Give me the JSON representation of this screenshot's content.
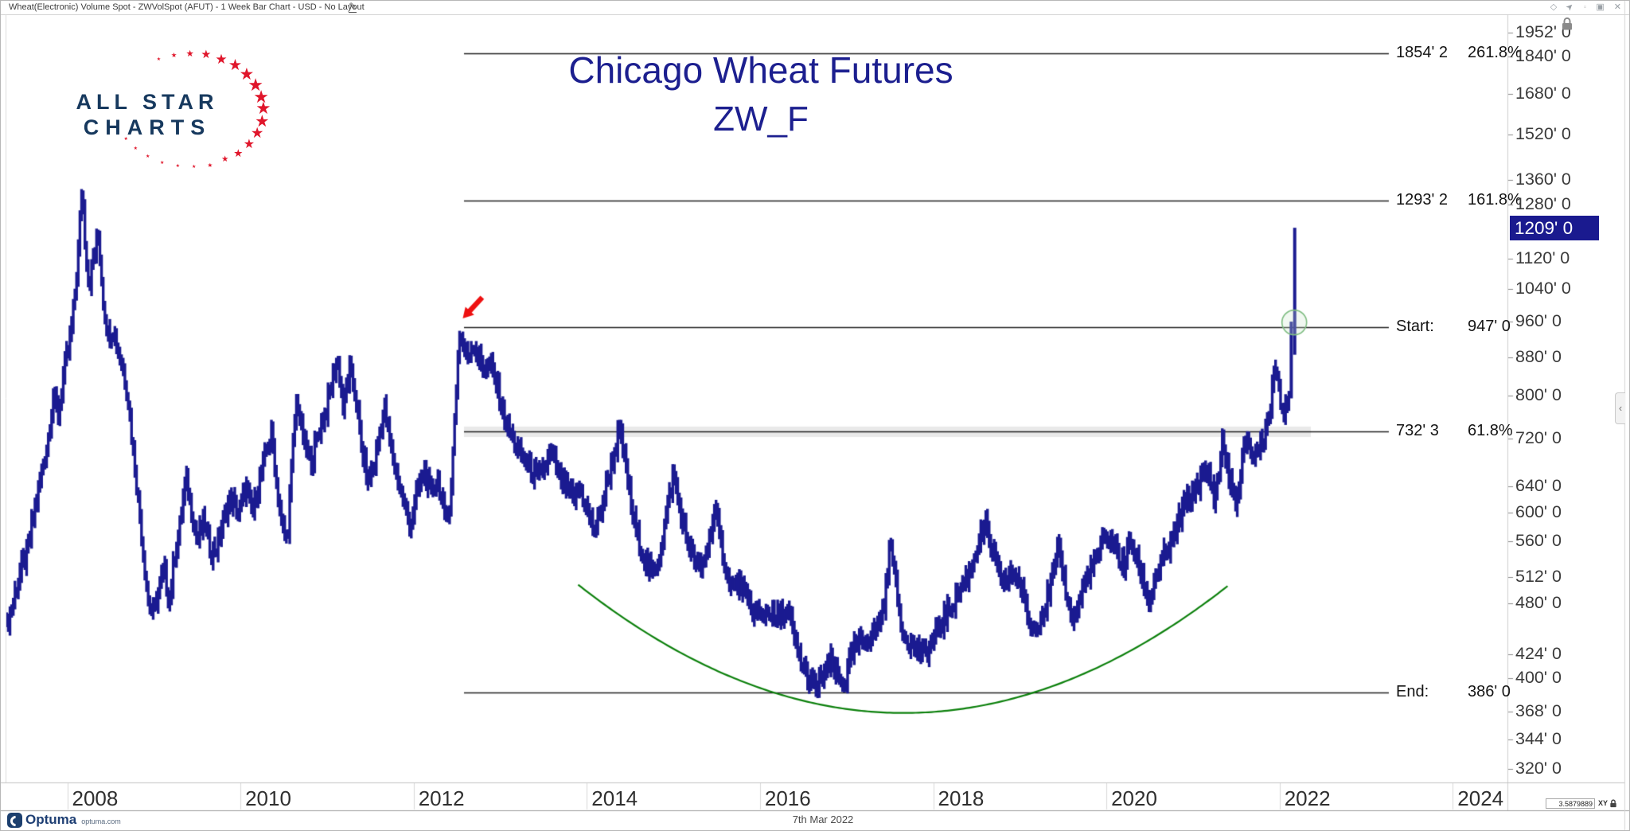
{
  "window": {
    "title": "Wheat(Electronic) Volume Spot - ZWVolSpot (AFUT) - 1 Week Bar Chart - USD - No Layout",
    "edit_icon": "✎",
    "controls": [
      {
        "name": "diamond",
        "glyph": "◇"
      },
      {
        "name": "pin",
        "glyph": "➤"
      },
      {
        "name": "divider",
        "glyph": "▫"
      },
      {
        "name": "restore",
        "glyph": "▣"
      },
      {
        "name": "close",
        "glyph": "✕"
      }
    ]
  },
  "logo": {
    "line1": "ALL STAR",
    "line2": "CHARTS",
    "text_color": "#17395e",
    "star_color": "#e0162b",
    "star_glyph": "★"
  },
  "chart_title": {
    "line1": "Chicago Wheat Futures",
    "line2": "ZW_F"
  },
  "price_axis": {
    "locked": true,
    "current_price": {
      "label": "1209' 0",
      "value": 1209
    },
    "ticks": [
      {
        "label": "1952' 0",
        "value": 1952
      },
      {
        "label": "1840' 0",
        "value": 1840
      },
      {
        "label": "1680' 0",
        "value": 1680
      },
      {
        "label": "1520' 0",
        "value": 1520
      },
      {
        "label": "1360' 0",
        "value": 1360
      },
      {
        "label": "1280' 0",
        "value": 1280
      },
      {
        "label": "1120' 0",
        "value": 1120
      },
      {
        "label": "1040' 0",
        "value": 1040
      },
      {
        "label": "960' 0",
        "value": 960
      },
      {
        "label": "880' 0",
        "value": 880
      },
      {
        "label": "800' 0",
        "value": 800
      },
      {
        "label": "720' 0",
        "value": 720
      },
      {
        "label": "640' 0",
        "value": 640
      },
      {
        "label": "600' 0",
        "value": 600
      },
      {
        "label": "560' 0",
        "value": 560
      },
      {
        "label": "512' 0",
        "value": 512
      },
      {
        "label": "480' 0",
        "value": 480
      },
      {
        "label": "424' 0",
        "value": 424
      },
      {
        "label": "400' 0",
        "value": 400
      },
      {
        "label": "368' 0",
        "value": 368
      },
      {
        "label": "344' 0",
        "value": 344
      },
      {
        "label": "320' 0",
        "value": 320
      }
    ]
  },
  "time_axis": {
    "years": [
      {
        "label": "2008",
        "value": 2008
      },
      {
        "label": "2010",
        "value": 2010
      },
      {
        "label": "2012",
        "value": 2012
      },
      {
        "label": "2014",
        "value": 2014
      },
      {
        "label": "2016",
        "value": 2016
      },
      {
        "label": "2018",
        "value": 2018
      },
      {
        "label": "2020",
        "value": 2020
      },
      {
        "label": "2022",
        "value": 2022
      },
      {
        "label": "2024",
        "value": 2024
      }
    ]
  },
  "footer": {
    "date_label": "7th Mar 2022",
    "brand": "Optuma",
    "brand_site": "optuma.com",
    "scale_readout": "3.5879889",
    "scale_mode": "XY"
  },
  "chart_data": {
    "type": "bar",
    "instrument": "Chicago Wheat Futures (ZW_F)",
    "timeframe": "1 Week",
    "y_scale": "log",
    "grid": false,
    "bar_color": "#1b1b91",
    "x_range_years": [
      2007.3,
      2024.9
    ],
    "y_range_price": [
      316,
      1975
    ],
    "fib_extension": {
      "line_color": "#1f1f1f",
      "levels": [
        {
          "kind": "extension",
          "price_label": "1854' 2",
          "pct_label": "261.8%",
          "value": 1854.25
        },
        {
          "kind": "extension",
          "price_label": "1293' 2",
          "pct_label": "161.8%",
          "value": 1293.25
        },
        {
          "kind": "anchor",
          "name_label": "Start:",
          "price_label": "947' 0",
          "value": 947,
          "highlight_band": false
        },
        {
          "kind": "retracement",
          "price_label": "732' 3",
          "pct_label": "61.8%",
          "value": 732.375,
          "highlight_band": true
        },
        {
          "kind": "anchor",
          "name_label": "End:",
          "price_label": "386' 0",
          "value": 386,
          "highlight_band": false
        }
      ]
    },
    "annotations": {
      "red_arrow": {
        "points_to_year": 2012.54,
        "points_to_price": 947,
        "color": "#ee1111"
      },
      "green_circle": {
        "year": 2022.17,
        "price": 958,
        "stroke": "#7fbd82",
        "fill": "rgba(205,230,205,0.28)"
      },
      "green_arc": {
        "color": "#0c800c",
        "left": {
          "year": 2013.9,
          "price": 503
        },
        "bottom": {
          "year": 2017.66,
          "price": 367
        },
        "right": {
          "year": 2021.43,
          "price": 503
        }
      }
    },
    "weekly_close_anchors": [
      [
        2007.3,
        455
      ],
      [
        2007.38,
        485
      ],
      [
        2007.46,
        520
      ],
      [
        2007.54,
        545
      ],
      [
        2007.62,
        600
      ],
      [
        2007.7,
        660
      ],
      [
        2007.78,
        720
      ],
      [
        2007.84,
        800
      ],
      [
        2007.9,
        760
      ],
      [
        2007.96,
        850
      ],
      [
        2008.02,
        900
      ],
      [
        2008.08,
        1000
      ],
      [
        2008.13,
        1150
      ],
      [
        2008.17,
        1340
      ],
      [
        2008.21,
        1150
      ],
      [
        2008.25,
        1050
      ],
      [
        2008.3,
        1120
      ],
      [
        2008.36,
        1180
      ],
      [
        2008.42,
        1000
      ],
      [
        2008.48,
        920
      ],
      [
        2008.52,
        950
      ],
      [
        2008.58,
        900
      ],
      [
        2008.64,
        860
      ],
      [
        2008.7,
        800
      ],
      [
        2008.76,
        700
      ],
      [
        2008.82,
        620
      ],
      [
        2008.88,
        540
      ],
      [
        2008.94,
        480
      ],
      [
        2009.0,
        470
      ],
      [
        2009.06,
        500
      ],
      [
        2009.12,
        520
      ],
      [
        2009.18,
        480
      ],
      [
        2009.24,
        540
      ],
      [
        2009.3,
        580
      ],
      [
        2009.37,
        655
      ],
      [
        2009.44,
        600
      ],
      [
        2009.5,
        560
      ],
      [
        2009.58,
        590
      ],
      [
        2009.66,
        545
      ],
      [
        2009.74,
        555
      ],
      [
        2009.82,
        600
      ],
      [
        2009.9,
        620
      ],
      [
        2009.98,
        600
      ],
      [
        2010.06,
        640
      ],
      [
        2010.14,
        600
      ],
      [
        2010.22,
        650
      ],
      [
        2010.3,
        700
      ],
      [
        2010.36,
        730
      ],
      [
        2010.42,
        640
      ],
      [
        2010.48,
        580
      ],
      [
        2010.54,
        560
      ],
      [
        2010.6,
        690
      ],
      [
        2010.65,
        800
      ],
      [
        2010.7,
        740
      ],
      [
        2010.76,
        700
      ],
      [
        2010.82,
        680
      ],
      [
        2010.88,
        720
      ],
      [
        2010.94,
        750
      ],
      [
        2011.0,
        780
      ],
      [
        2011.06,
        830
      ],
      [
        2011.12,
        880
      ],
      [
        2011.19,
        770
      ],
      [
        2011.26,
        855
      ],
      [
        2011.33,
        800
      ],
      [
        2011.4,
        700
      ],
      [
        2011.47,
        650
      ],
      [
        2011.54,
        670
      ],
      [
        2011.6,
        720
      ],
      [
        2011.66,
        780
      ],
      [
        2011.73,
        710
      ],
      [
        2011.8,
        660
      ],
      [
        2011.88,
        620
      ],
      [
        2011.96,
        580
      ],
      [
        2012.04,
        630
      ],
      [
        2012.12,
        665
      ],
      [
        2012.2,
        630
      ],
      [
        2012.28,
        655
      ],
      [
        2012.36,
        590
      ],
      [
        2012.43,
        620
      ],
      [
        2012.48,
        780
      ],
      [
        2012.53,
        930
      ],
      [
        2012.58,
        900
      ],
      [
        2012.63,
        880
      ],
      [
        2012.68,
        915
      ],
      [
        2012.74,
        880
      ],
      [
        2012.8,
        855
      ],
      [
        2012.88,
        865
      ],
      [
        2012.96,
        820
      ],
      [
        2013.04,
        760
      ],
      [
        2013.12,
        730
      ],
      [
        2013.2,
        700
      ],
      [
        2013.28,
        685
      ],
      [
        2013.36,
        665
      ],
      [
        2013.44,
        655
      ],
      [
        2013.52,
        675
      ],
      [
        2013.6,
        695
      ],
      [
        2013.68,
        655
      ],
      [
        2013.76,
        640
      ],
      [
        2013.84,
        620
      ],
      [
        2013.92,
        640
      ],
      [
        2014.0,
        605
      ],
      [
        2014.08,
        575
      ],
      [
        2014.16,
        600
      ],
      [
        2014.24,
        650
      ],
      [
        2014.31,
        690
      ],
      [
        2014.37,
        730
      ],
      [
        2014.44,
        685
      ],
      [
        2014.52,
        600
      ],
      [
        2014.6,
        560
      ],
      [
        2014.68,
        530
      ],
      [
        2014.76,
        515
      ],
      [
        2014.84,
        540
      ],
      [
        2014.92,
        600
      ],
      [
        2015.0,
        660
      ],
      [
        2015.08,
        600
      ],
      [
        2015.16,
        560
      ],
      [
        2015.24,
        535
      ],
      [
        2015.32,
        520
      ],
      [
        2015.4,
        555
      ],
      [
        2015.48,
        605
      ],
      [
        2015.54,
        560
      ],
      [
        2015.62,
        515
      ],
      [
        2015.7,
        500
      ],
      [
        2015.78,
        505
      ],
      [
        2015.86,
        480
      ],
      [
        2015.94,
        470
      ],
      [
        2016.02,
        465
      ],
      [
        2016.1,
        475
      ],
      [
        2016.18,
        460
      ],
      [
        2016.26,
        470
      ],
      [
        2016.34,
        465
      ],
      [
        2016.42,
        430
      ],
      [
        2016.5,
        410
      ],
      [
        2016.58,
        395
      ],
      [
        2016.66,
        390
      ],
      [
        2016.74,
        405
      ],
      [
        2016.82,
        415
      ],
      [
        2016.9,
        400
      ],
      [
        2016.98,
        395
      ],
      [
        2017.06,
        425
      ],
      [
        2017.14,
        435
      ],
      [
        2017.22,
        440
      ],
      [
        2017.3,
        445
      ],
      [
        2017.38,
        460
      ],
      [
        2017.45,
        490
      ],
      [
        2017.51,
        565
      ],
      [
        2017.57,
        500
      ],
      [
        2017.63,
        455
      ],
      [
        2017.71,
        440
      ],
      [
        2017.79,
        430
      ],
      [
        2017.87,
        425
      ],
      [
        2017.95,
        430
      ],
      [
        2018.03,
        445
      ],
      [
        2018.11,
        460
      ],
      [
        2018.19,
        475
      ],
      [
        2018.27,
        490
      ],
      [
        2018.35,
        505
      ],
      [
        2018.43,
        520
      ],
      [
        2018.51,
        555
      ],
      [
        2018.6,
        580
      ],
      [
        2018.68,
        545
      ],
      [
        2018.76,
        515
      ],
      [
        2018.84,
        505
      ],
      [
        2018.92,
        520
      ],
      [
        2019.0,
        505
      ],
      [
        2019.07,
        475
      ],
      [
        2019.13,
        450
      ],
      [
        2019.21,
        460
      ],
      [
        2019.29,
        475
      ],
      [
        2019.37,
        510
      ],
      [
        2019.45,
        545
      ],
      [
        2019.52,
        505
      ],
      [
        2019.58,
        470
      ],
      [
        2019.64,
        465
      ],
      [
        2019.72,
        495
      ],
      [
        2019.8,
        520
      ],
      [
        2019.88,
        535
      ],
      [
        2019.96,
        560
      ],
      [
        2020.04,
        565
      ],
      [
        2020.12,
        545
      ],
      [
        2020.2,
        525
      ],
      [
        2020.28,
        560
      ],
      [
        2020.36,
        530
      ],
      [
        2020.43,
        505
      ],
      [
        2020.49,
        480
      ],
      [
        2020.56,
        510
      ],
      [
        2020.63,
        530
      ],
      [
        2020.7,
        545
      ],
      [
        2020.77,
        560
      ],
      [
        2020.84,
        590
      ],
      [
        2020.91,
        615
      ],
      [
        2020.98,
        625
      ],
      [
        2021.05,
        645
      ],
      [
        2021.12,
        655
      ],
      [
        2021.19,
        660
      ],
      [
        2021.25,
        620
      ],
      [
        2021.3,
        660
      ],
      [
        2021.34,
        720
      ],
      [
        2021.4,
        665
      ],
      [
        2021.46,
        630
      ],
      [
        2021.52,
        615
      ],
      [
        2021.58,
        695
      ],
      [
        2021.63,
        725
      ],
      [
        2021.69,
        685
      ],
      [
        2021.75,
        705
      ],
      [
        2021.81,
        720
      ],
      [
        2021.87,
        755
      ],
      [
        2021.93,
        830
      ],
      [
        2021.97,
        860
      ],
      [
        2022.01,
        800
      ],
      [
        2022.05,
        760
      ],
      [
        2022.09,
        775
      ],
      [
        2022.12,
        800
      ]
    ],
    "final_bars": [
      {
        "year": 2022.135,
        "high": 960,
        "low": 795
      },
      {
        "year": 2022.175,
        "high": 1209,
        "low": 885
      }
    ]
  }
}
